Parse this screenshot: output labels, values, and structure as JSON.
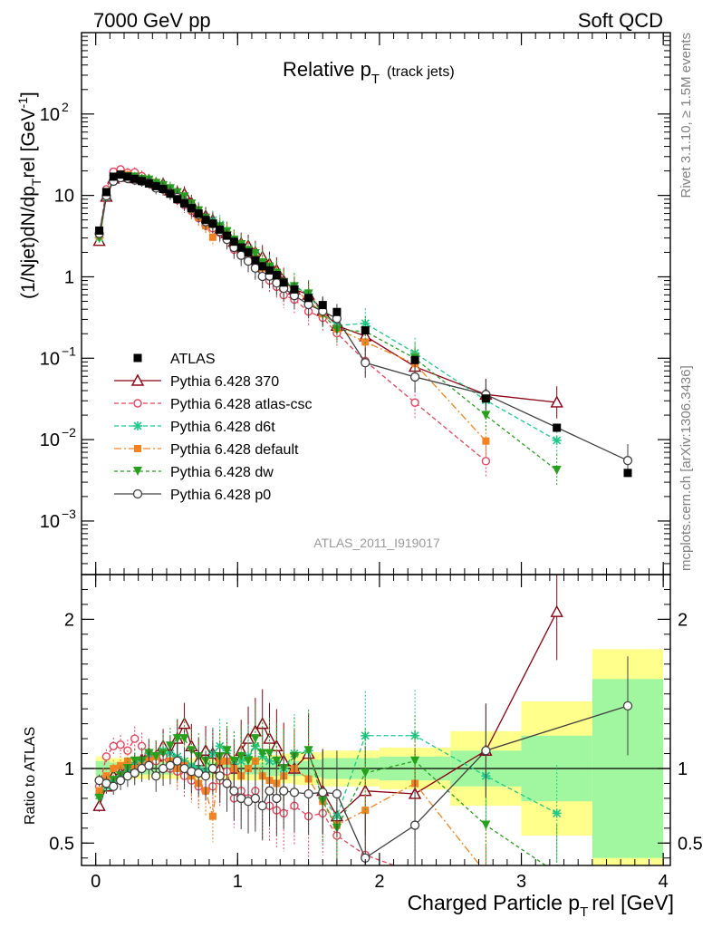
{
  "header": {
    "left": "7000 GeV pp",
    "right": "Soft QCD"
  },
  "side_labels": {
    "rivet": "Rivet 3.1.10, ≥ 1.5M events",
    "mcplots": "mcplots.cern.ch [arXiv:1306.3436]"
  },
  "chart_data": {
    "type": "line",
    "title": "Relative p",
    "title_sub": "T",
    "title_suffix": "(track jets)",
    "analysis_label": "ATLAS_2011_I919017",
    "ylabel": "(1/Njet)dN/dp",
    "ylabel_sub": "T",
    "ylabel_rest": "rel [GeV",
    "ylabel_sup": "-1",
    "ylabel_close": "]",
    "ratio_ylabel": "Ratio to ATLAS",
    "xlabel": "Charged Particle p",
    "xlabel_sub": "T",
    "xlabel_rest": "rel [GeV]",
    "xlim": [
      -0.1,
      4.05
    ],
    "ylim_log": [
      0.00022,
      1000
    ],
    "ratio_ylim": [
      0.35,
      2.3
    ],
    "x_ticks": [
      "0",
      "1",
      "2",
      "3",
      "4"
    ],
    "ratio_ticks": [
      "0.5",
      "1",
      "2"
    ],
    "x": [
      0.025,
      0.075,
      0.125,
      0.175,
      0.225,
      0.275,
      0.325,
      0.375,
      0.425,
      0.475,
      0.525,
      0.575,
      0.625,
      0.675,
      0.725,
      0.775,
      0.825,
      0.875,
      0.925,
      0.975,
      1.025,
      1.075,
      1.125,
      1.175,
      1.225,
      1.275,
      1.325,
      1.4,
      1.5,
      1.6,
      1.7,
      1.9,
      2.25,
      2.75,
      3.25,
      3.75
    ],
    "atlas": {
      "name": "ATLAS",
      "values": [
        3.7,
        11,
        17,
        18,
        17,
        16,
        15,
        14,
        13,
        12,
        10.5,
        9,
        8,
        7,
        6,
        5,
        4.5,
        3.8,
        3.2,
        2.7,
        2.3,
        2.0,
        1.6,
        1.35,
        1.2,
        1.05,
        0.85,
        0.7,
        0.55,
        0.45,
        0.37,
        0.22,
        0.095,
        0.032,
        0.014,
        0.0039
      ],
      "band_x": [
        0,
        0.1,
        0.2,
        0.3,
        0.4,
        0.5,
        0.6,
        0.7,
        0.8,
        0.9,
        1.0,
        1.1,
        1.2,
        1.3,
        1.4,
        1.5,
        1.6,
        1.8,
        2.0,
        2.5,
        3.0,
        3.5,
        4.0
      ],
      "band_stat": [
        0.05,
        0.04,
        0.04,
        0.04,
        0.04,
        0.04,
        0.04,
        0.04,
        0.04,
        0.04,
        0.04,
        0.04,
        0.05,
        0.05,
        0.05,
        0.06,
        0.07,
        0.07,
        0.08,
        0.12,
        0.22,
        0.6
      ],
      "band_tot": [
        0.08,
        0.07,
        0.07,
        0.07,
        0.07,
        0.07,
        0.07,
        0.07,
        0.07,
        0.08,
        0.08,
        0.08,
        0.09,
        0.1,
        0.11,
        0.11,
        0.12,
        0.12,
        0.14,
        0.25,
        0.45,
        0.8
      ]
    },
    "series": [
      {
        "name": "Pythia 6.428 370",
        "color": "#8b0012",
        "marker": "triangle",
        "dash": "",
        "ratio": [
          0.75,
          0.88,
          0.95,
          0.97,
          1.0,
          1.02,
          1.06,
          1.1,
          1.08,
          1.15,
          1.1,
          1.2,
          1.3,
          1.15,
          1.05,
          1.12,
          1.1,
          1.0,
          1.08,
          1.0,
          1.12,
          1.2,
          1.25,
          1.3,
          1.2,
          1.15,
          1.05,
          1.0,
          1.1,
          0.85,
          0.68,
          0.85,
          0.83,
          1.12,
          2.05,
          null
        ]
      },
      {
        "name": "Pythia 6.428 atlas-csc",
        "color": "#e8435e",
        "marker": "circle",
        "dash": "5,3",
        "ratio": [
          0.88,
          1.08,
          1.15,
          1.16,
          1.12,
          1.2,
          1.15,
          1.1,
          1.05,
          1.08,
          1.0,
          0.98,
          0.95,
          0.92,
          0.88,
          0.85,
          0.88,
          0.92,
          0.98,
          0.8,
          0.85,
          0.8,
          0.85,
          0.75,
          0.75,
          0.72,
          0.7,
          0.75,
          0.68,
          0.7,
          0.55,
          0.42,
          0.3,
          0.17,
          null,
          null
        ]
      },
      {
        "name": "Pythia 6.428 d6t",
        "color": "#1ec98a",
        "marker": "star",
        "dash": "5,3",
        "ratio": [
          0.82,
          0.88,
          0.9,
          0.95,
          0.98,
          1.02,
          1.05,
          1.1,
          1.08,
          1.12,
          1.1,
          1.08,
          1.05,
          1.02,
          1.0,
          0.98,
          1.1,
          1.15,
          1.12,
          1.05,
          1.05,
          1.08,
          1.15,
          1.08,
          1.05,
          1.05,
          1.0,
          1.1,
          1.12,
          0.8,
          0.68,
          1.22,
          1.22,
          0.95,
          0.7,
          null
        ]
      },
      {
        "name": "Pythia 6.428 default",
        "color": "#f58220",
        "marker": "square",
        "dash": "8,3,2,3",
        "ratio": [
          0.85,
          0.95,
          1.0,
          1.02,
          1.05,
          1.0,
          1.02,
          1.05,
          1.08,
          1.0,
          1.05,
          1.0,
          1.02,
          0.95,
          0.9,
          0.85,
          0.68,
          1.05,
          1.05,
          1.0,
          0.95,
          1.0,
          1.05,
          0.95,
          0.92,
          0.9,
          0.95,
          1.0,
          0.93,
          0.78,
          0.62,
          0.72,
          0.9,
          0.3,
          null,
          null
        ]
      },
      {
        "name": "Pythia 6.428 dw",
        "color": "#28a01e",
        "marker": "triangle-down",
        "dash": "4,3",
        "ratio": [
          0.8,
          0.88,
          0.92,
          0.95,
          1.0,
          1.05,
          1.05,
          1.1,
          1.08,
          1.1,
          1.15,
          1.2,
          1.2,
          1.12,
          1.08,
          1.05,
          1.0,
          1.08,
          1.12,
          1.05,
          1.08,
          1.05,
          1.2,
          1.1,
          1.1,
          1.05,
          1.0,
          1.08,
          1.12,
          0.78,
          0.6,
          0.97,
          1.05,
          0.62,
          0.3,
          null
        ]
      },
      {
        "name": "Pythia 6.428 p0",
        "color": "#404040",
        "marker": "open-circle",
        "dash": "",
        "ratio": [
          0.92,
          0.9,
          0.88,
          0.92,
          0.95,
          0.97,
          1.0,
          1.02,
          0.95,
          1.0,
          1.02,
          1.05,
          1.0,
          0.98,
          0.97,
          0.95,
          1.0,
          0.95,
          0.9,
          0.85,
          0.8,
          0.78,
          0.8,
          0.75,
          0.85,
          0.8,
          0.85,
          0.84,
          0.83,
          0.84,
          0.83,
          0.4,
          0.62,
          1.12,
          null,
          1.42
        ]
      }
    ]
  }
}
